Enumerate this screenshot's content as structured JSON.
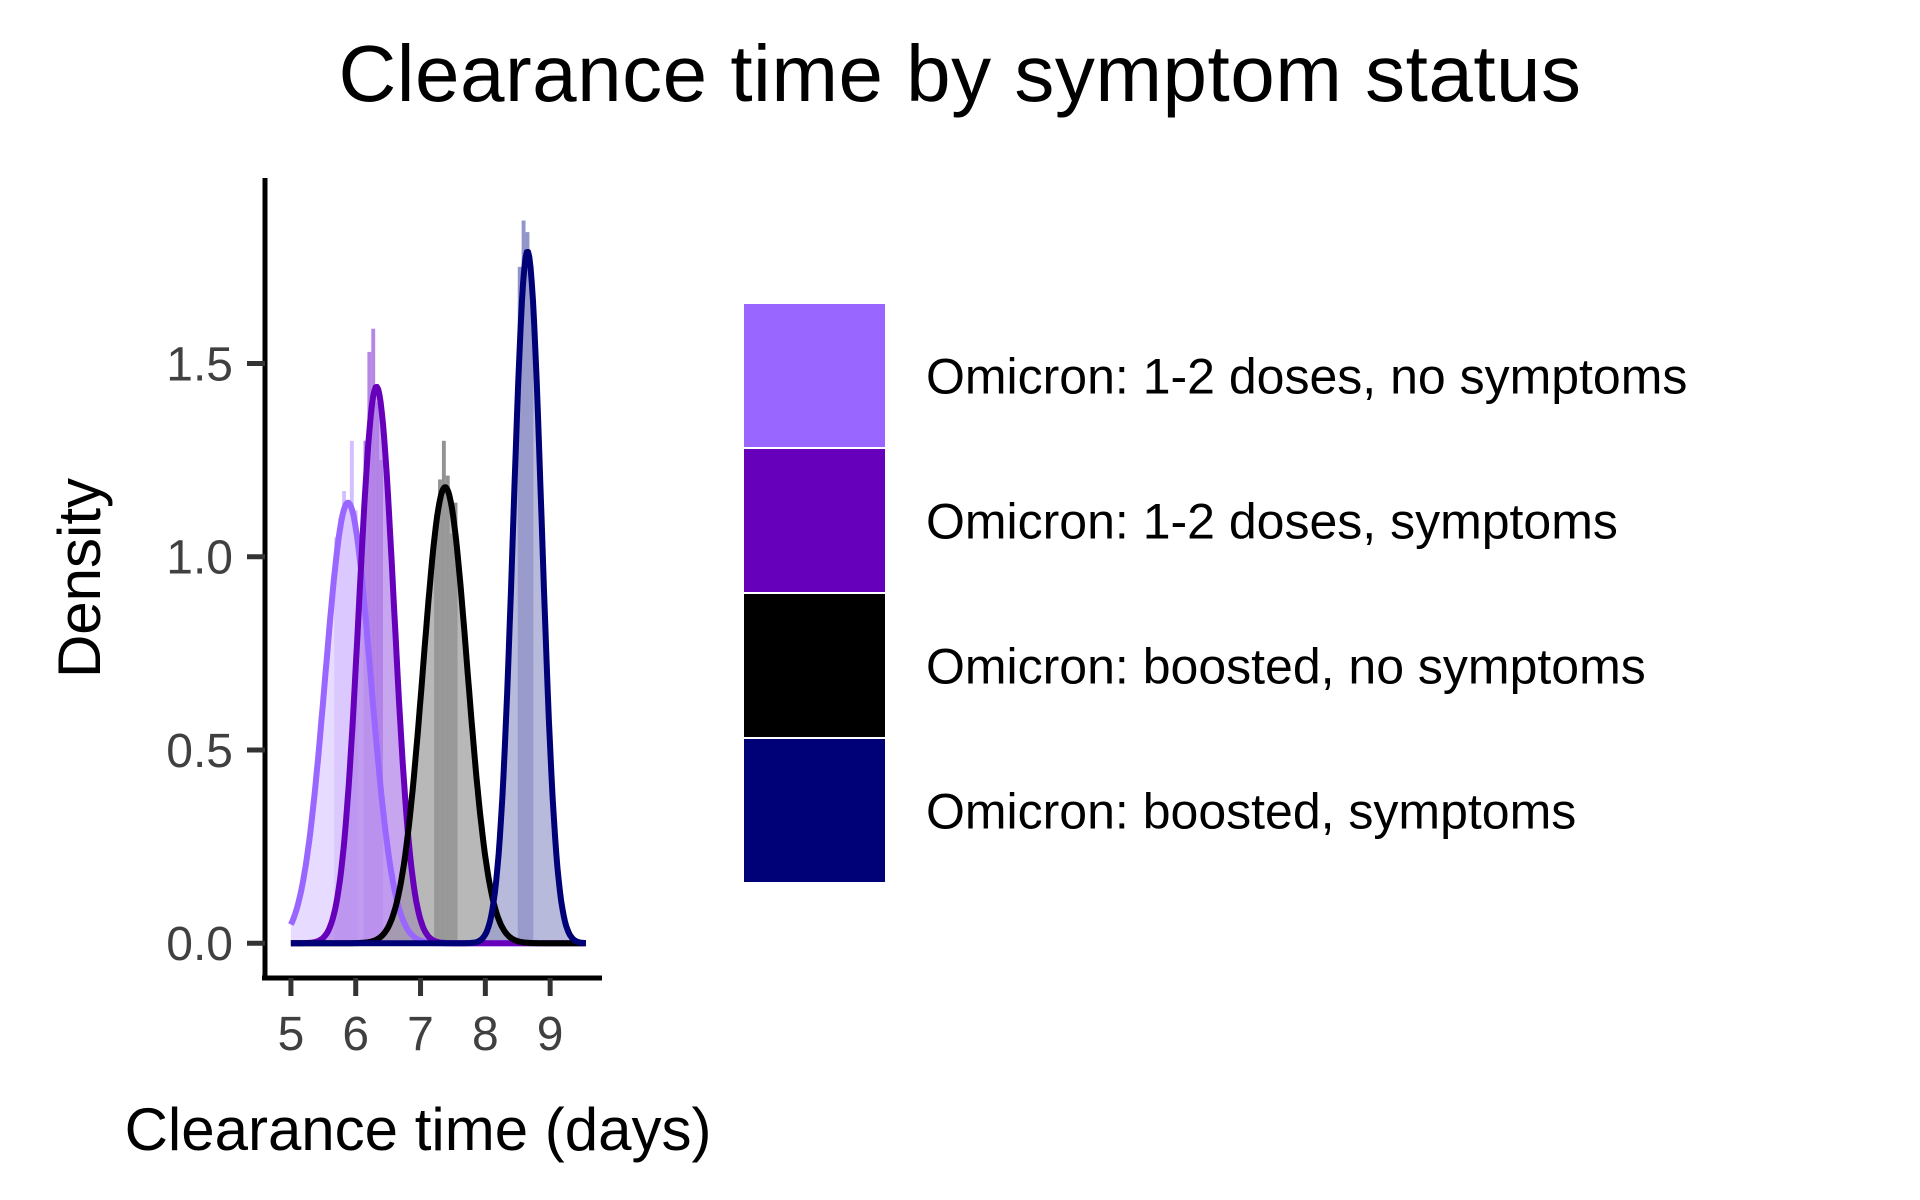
{
  "chart_data": {
    "type": "area",
    "title": "Clearance time by symptom status",
    "xlabel": "Clearance time (days)",
    "ylabel": "Density",
    "xlim": [
      4.6,
      9.8
    ],
    "ylim": [
      -0.09,
      1.98
    ],
    "x_ticks": [
      "5",
      "6",
      "7",
      "8",
      "9"
    ],
    "y_ticks": [
      "0.0",
      "0.5",
      "1.0",
      "1.5"
    ],
    "grid": false,
    "legend_position": "right",
    "series": [
      {
        "name": "Omicron: 1-2 doses, no symptoms",
        "color": "#9966FF",
        "mean": 5.88,
        "sd": 0.35,
        "peak_density": 1.14,
        "histogram": [
          {
            "x": 5.7,
            "density": 1.05
          },
          {
            "x": 5.76,
            "density": 1.1
          },
          {
            "x": 5.82,
            "density": 1.17
          },
          {
            "x": 5.88,
            "density": 1.14
          },
          {
            "x": 5.94,
            "density": 1.3
          },
          {
            "x": 6.0,
            "density": 1.12
          }
        ]
      },
      {
        "name": "Omicron: 1-2 doses, symptoms",
        "color": "#6600BB",
        "mean": 6.32,
        "sd": 0.27,
        "peak_density": 1.44,
        "histogram": [
          {
            "x": 6.15,
            "density": 1.3
          },
          {
            "x": 6.21,
            "density": 1.53
          },
          {
            "x": 6.27,
            "density": 1.59
          },
          {
            "x": 6.33,
            "density": 1.4
          },
          {
            "x": 6.39,
            "density": 1.25
          }
        ]
      },
      {
        "name": "Omicron: boosted, no symptoms",
        "color": "#000000",
        "mean": 7.38,
        "sd": 0.34,
        "peak_density": 1.18,
        "histogram": [
          {
            "x": 7.24,
            "density": 1.08
          },
          {
            "x": 7.3,
            "density": 1.2
          },
          {
            "x": 7.36,
            "density": 1.3
          },
          {
            "x": 7.42,
            "density": 1.21
          },
          {
            "x": 7.48,
            "density": 1.06
          },
          {
            "x": 7.54,
            "density": 1.14
          }
        ]
      },
      {
        "name": "Omicron: boosted, symptoms",
        "color": "#000077",
        "mean": 8.65,
        "sd": 0.22,
        "peak_density": 1.79,
        "histogram": [
          {
            "x": 8.53,
            "density": 1.75
          },
          {
            "x": 8.59,
            "density": 1.87
          },
          {
            "x": 8.65,
            "density": 1.84
          },
          {
            "x": 8.71,
            "density": 1.72
          }
        ]
      }
    ]
  }
}
